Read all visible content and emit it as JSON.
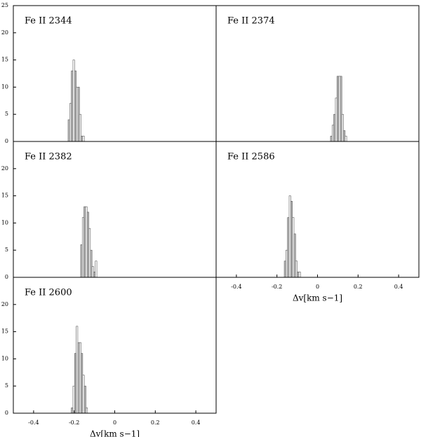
{
  "chart_data": [
    {
      "type": "histogram",
      "title": "Fe II 2344",
      "bins": [
        -0.23,
        -0.222,
        -0.214,
        -0.206,
        -0.198,
        -0.19,
        -0.182,
        -0.174,
        -0.166,
        -0.158,
        -0.15
      ],
      "values": [
        4,
        7,
        13,
        15,
        13,
        10,
        10,
        5,
        1,
        1
      ],
      "xlim": [
        -0.5,
        0.5
      ],
      "ylim": [
        0,
        25
      ],
      "yticks": [
        0,
        5,
        10,
        15,
        20,
        25
      ]
    },
    {
      "type": "histogram",
      "title": "Fe II 2374",
      "bins": [
        0.064,
        0.072,
        0.08,
        0.088,
        0.096,
        0.104,
        0.112,
        0.12,
        0.128,
        0.136,
        0.144
      ],
      "values": [
        1,
        3,
        5,
        8,
        12,
        12,
        12,
        5,
        2,
        1
      ],
      "xlim": [
        -0.5,
        0.5
      ],
      "ylim": [
        0,
        25
      ]
    },
    {
      "type": "histogram",
      "title": "Fe II 2382",
      "bins": [
        -0.168,
        -0.16,
        -0.152,
        -0.144,
        -0.136,
        -0.128,
        -0.12,
        -0.112,
        -0.104,
        -0.096,
        -0.088
      ],
      "values": [
        6,
        11,
        13,
        13,
        12,
        9,
        5,
        2,
        1,
        3
      ],
      "xlim": [
        -0.5,
        0.5
      ],
      "ylim": [
        0,
        25
      ],
      "yticks": [
        0,
        5,
        10,
        15,
        20
      ]
    },
    {
      "type": "histogram",
      "title": "Fe II 2586",
      "bins": [
        -0.164,
        -0.156,
        -0.148,
        -0.14,
        -0.132,
        -0.124,
        -0.116,
        -0.108,
        -0.1,
        -0.092,
        -0.084
      ],
      "values": [
        3,
        5,
        11,
        15,
        14,
        11,
        8,
        3,
        1,
        1
      ],
      "xlim": [
        -0.5,
        0.5
      ],
      "ylim": [
        0,
        25
      ],
      "xticks": [
        -0.4,
        -0.2,
        0,
        0.2,
        0.4
      ],
      "xlabel": "Δv[km s−1]"
    },
    {
      "type": "histogram",
      "title": "Fe II 2600",
      "bins": [
        -0.214,
        -0.206,
        -0.198,
        -0.19,
        -0.182,
        -0.174,
        -0.166,
        -0.158,
        -0.15,
        -0.142,
        -0.134
      ],
      "values": [
        1,
        5,
        11,
        16,
        13,
        13,
        11,
        7,
        5,
        1
      ],
      "xlim": [
        -0.5,
        0.5
      ],
      "ylim": [
        0,
        25
      ],
      "yticks": [
        0,
        5,
        10,
        15,
        20
      ],
      "xticks": [
        -0.4,
        -0.2,
        0,
        0.2,
        0.4
      ],
      "xlabel": "Δv[km s−1]"
    }
  ]
}
